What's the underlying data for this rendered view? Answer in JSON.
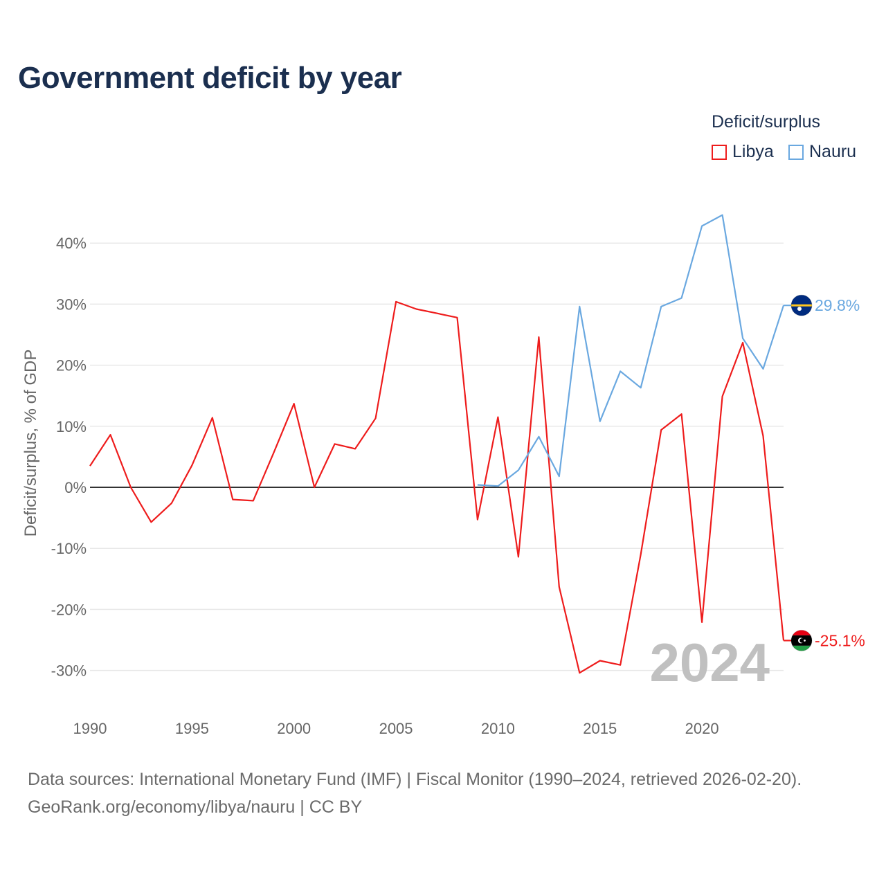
{
  "page": {
    "title": "Government deficit by year",
    "footer_line1": "Data sources: International Monetary Fund (IMF) | Fiscal Monitor (1990–2024, retrieved 2026-02-20).",
    "footer_line2": "GeoRank.org/economy/libya/nauru | CC BY"
  },
  "legend": {
    "title": "Deficit/surplus",
    "items": [
      {
        "label": "Libya",
        "color": "#ee1c1c"
      },
      {
        "label": "Nauru",
        "color": "#6aa8e0"
      }
    ]
  },
  "chart_data": {
    "type": "line",
    "title": "Government deficit by year",
    "xlabel": "",
    "ylabel": "Deficit/surplus, % of GDP",
    "xlim": [
      1990,
      2024
    ],
    "ylim": [
      -35,
      45
    ],
    "x_ticks": [
      1990,
      1995,
      2000,
      2005,
      2010,
      2015,
      2020
    ],
    "x_tick_labels": [
      "1990",
      "1995",
      "2000",
      "2005",
      "2010",
      "2015",
      "2020"
    ],
    "y_ticks": [
      40,
      30,
      20,
      10,
      0,
      -10,
      -20,
      -30
    ],
    "y_tick_labels": [
      "40%",
      "30%",
      "20%",
      "10%",
      "0%",
      "-10%",
      "-20%",
      "-30%"
    ],
    "year_watermark": "2024",
    "series": [
      {
        "name": "Libya",
        "color": "#ee1c1c",
        "end_label": "-25.1%",
        "flag": "libya",
        "points": [
          [
            1990,
            3.5
          ],
          [
            1991,
            8.6
          ],
          [
            1992,
            0.0
          ],
          [
            1993,
            -5.7
          ],
          [
            1994,
            -2.6
          ],
          [
            1995,
            3.6
          ],
          [
            1996,
            11.4
          ],
          [
            1997,
            -2.0
          ],
          [
            1998,
            -2.2
          ],
          [
            1999,
            5.6
          ],
          [
            2000,
            13.7
          ],
          [
            2001,
            0.0
          ],
          [
            2002,
            7.1
          ],
          [
            2003,
            6.3
          ],
          [
            2004,
            11.3
          ],
          [
            2005,
            30.4
          ],
          [
            2006,
            29.2
          ],
          [
            2007,
            28.5
          ],
          [
            2008,
            27.8
          ],
          [
            2009,
            -5.3
          ],
          [
            2010,
            11.5
          ],
          [
            2011,
            -11.4
          ],
          [
            2012,
            24.6
          ],
          [
            2013,
            -16.3
          ],
          [
            2014,
            -30.4
          ],
          [
            2015,
            -28.4
          ],
          [
            2016,
            -29.1
          ],
          [
            2017,
            -11.0
          ],
          [
            2018,
            9.4
          ],
          [
            2019,
            12.0
          ],
          [
            2020,
            -22.1
          ],
          [
            2021,
            14.9
          ],
          [
            2022,
            23.7
          ],
          [
            2023,
            8.4
          ],
          [
            2024,
            -25.1
          ]
        ]
      },
      {
        "name": "Nauru",
        "color": "#6aa8e0",
        "end_label": "29.8%",
        "flag": "nauru",
        "points": [
          [
            2009,
            0.4
          ],
          [
            2010,
            0.2
          ],
          [
            2011,
            2.8
          ],
          [
            2012,
            8.3
          ],
          [
            2013,
            1.8
          ],
          [
            2014,
            29.6
          ],
          [
            2015,
            10.8
          ],
          [
            2016,
            19.0
          ],
          [
            2017,
            16.3
          ],
          [
            2018,
            29.6
          ],
          [
            2019,
            31.0
          ],
          [
            2020,
            42.8
          ],
          [
            2021,
            44.6
          ],
          [
            2022,
            24.4
          ],
          [
            2023,
            19.4
          ],
          [
            2024,
            29.8
          ]
        ]
      }
    ]
  }
}
